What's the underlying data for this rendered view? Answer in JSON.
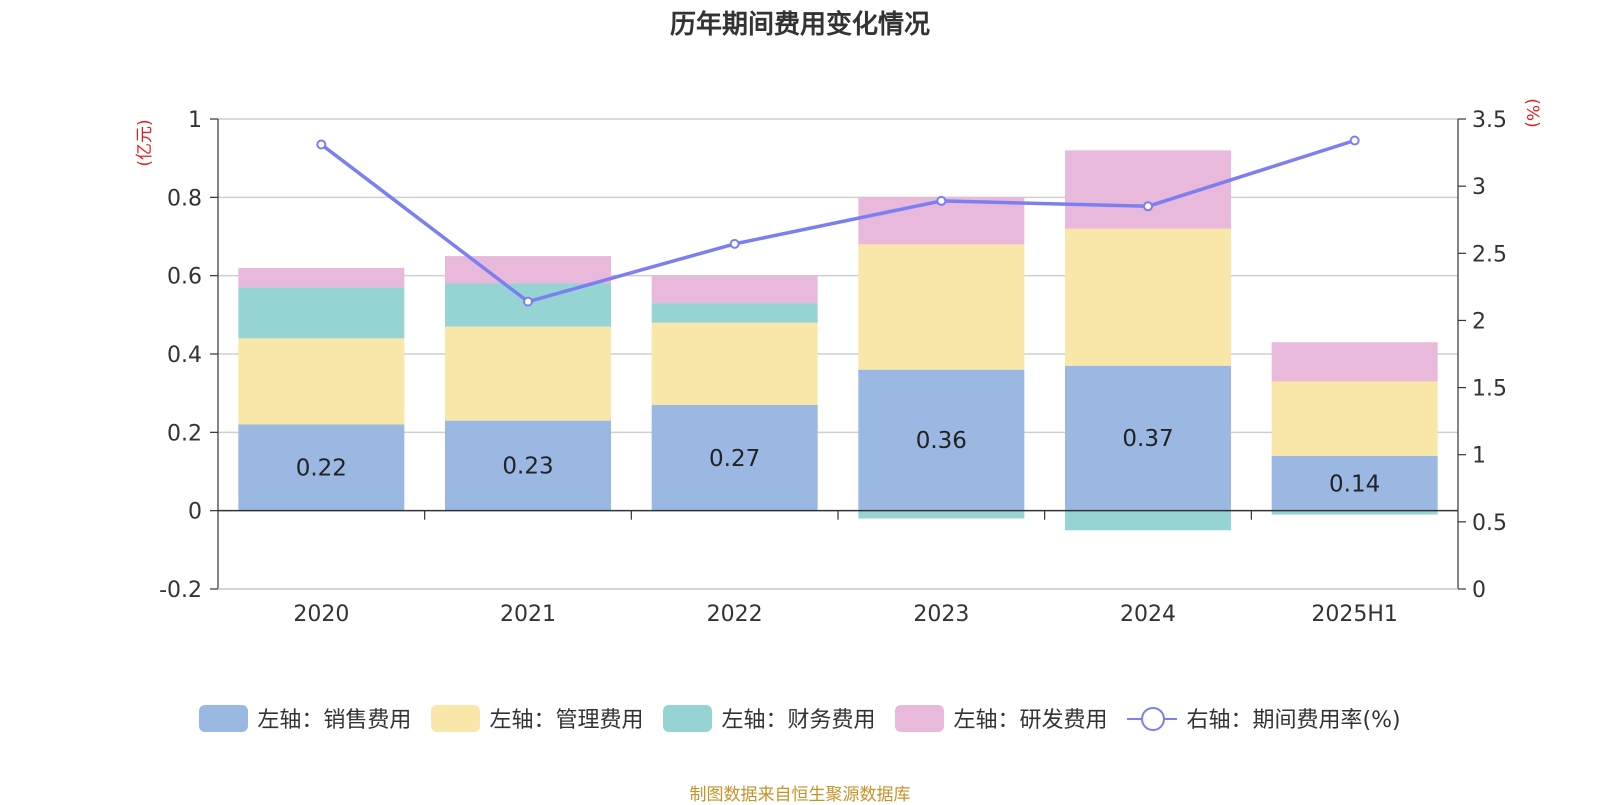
{
  "title": "历年期间费用变化情况",
  "footer": "制图数据来自恒生聚源数据库",
  "chart_data": {
    "type": "bar",
    "stacked": true,
    "categories": [
      "2020",
      "2021",
      "2022",
      "2023",
      "2024",
      "2025H1"
    ],
    "left_axis": {
      "unit_label": "(亿元)",
      "ylim": [
        -0.2,
        1
      ],
      "ticks": [
        "-0.2",
        "0",
        "0.2",
        "0.4",
        "0.6",
        "0.8",
        "1"
      ]
    },
    "right_axis": {
      "unit_label": "(%)",
      "ylim": [
        0,
        3.5
      ],
      "ticks": [
        "0",
        "0.5",
        "1",
        "1.5",
        "2",
        "2.5",
        "3",
        "3.5"
      ]
    },
    "series": [
      {
        "name": "左轴：销售费用",
        "axis": "left",
        "type": "bar",
        "color": "#9bb8e3",
        "values": [
          0.22,
          0.23,
          0.27,
          0.36,
          0.37,
          0.14
        ],
        "labels": [
          "0.22",
          "0.23",
          "0.27",
          "0.36",
          "0.37",
          "0.14"
        ]
      },
      {
        "name": "左轴：管理费用",
        "axis": "left",
        "type": "bar",
        "color": "#f8e7a9",
        "values": [
          0.22,
          0.24,
          0.21,
          0.32,
          0.35,
          0.19
        ]
      },
      {
        "name": "左轴：财务费用",
        "axis": "left",
        "type": "bar",
        "color": "#96d4d4",
        "values": [
          0.13,
          0.11,
          0.05,
          -0.02,
          -0.05,
          -0.01
        ]
      },
      {
        "name": "左轴：研发费用",
        "axis": "left",
        "type": "bar",
        "color": "#e8b9da",
        "values": [
          0.05,
          0.07,
          0.07,
          0.12,
          0.2,
          0.1
        ]
      },
      {
        "name": "右轴：期间费用率(%)",
        "axis": "right",
        "type": "line",
        "color": "#7b7ff0",
        "values": [
          3.31,
          2.14,
          2.57,
          2.89,
          2.85,
          3.34
        ]
      }
    ],
    "grid": true,
    "legend_position": "bottom"
  }
}
